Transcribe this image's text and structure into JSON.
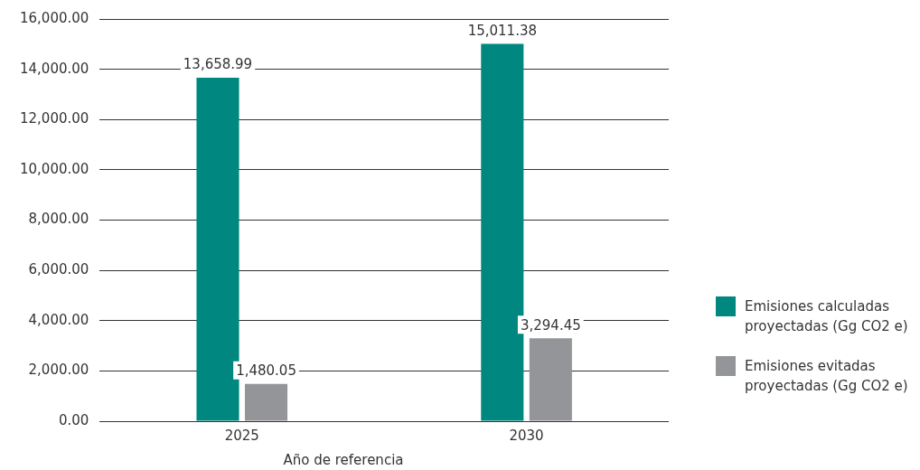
{
  "chart_data": {
    "type": "bar",
    "xlabel": "Año de referencia",
    "categories": [
      "2025",
      "2030"
    ],
    "series": [
      {
        "name": "Emisiones calculadas proyectadas (Gg CO2 e)",
        "color": "#00877f",
        "values": [
          13658.99,
          15011.38
        ],
        "value_labels": [
          "13,658.99",
          "15,011.38"
        ]
      },
      {
        "name": "Emisiones evitadas proyectadas (Gg CO2 e)",
        "color": "#939598",
        "values": [
          1480.05,
          3294.45
        ],
        "value_labels": [
          "1,480.05",
          "3,294.45"
        ]
      }
    ],
    "ylim": [
      0,
      16000
    ],
    "yticks": [
      {
        "value": 0,
        "label": "0.00"
      },
      {
        "value": 2000,
        "label": "2,000.00"
      },
      {
        "value": 4000,
        "label": "4,000.00"
      },
      {
        "value": 6000,
        "label": "6,000.00"
      },
      {
        "value": 8000,
        "label": "8,000.00"
      },
      {
        "value": 10000,
        "label": "10,000.00"
      },
      {
        "value": 12000,
        "label": "12,000.00"
      },
      {
        "value": 14000,
        "label": "14,000.00"
      },
      {
        "value": 16000,
        "label": "16,000.00"
      }
    ],
    "grid": "y",
    "legend": "right"
  }
}
